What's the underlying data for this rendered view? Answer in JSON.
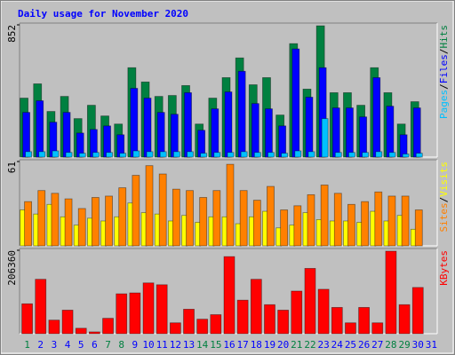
{
  "chart_data": {
    "type": "bar",
    "title": "Daily usage for November 2020",
    "categories": [
      "1",
      "2",
      "3",
      "4",
      "5",
      "6",
      "7",
      "8",
      "9",
      "10",
      "11",
      "12",
      "13",
      "14",
      "15",
      "16",
      "17",
      "18",
      "19",
      "20",
      "21",
      "22",
      "23",
      "24",
      "25",
      "26",
      "27",
      "28",
      "29",
      "30",
      "31"
    ],
    "category_colors": [
      "#008040",
      "#0000ff",
      "#0000ff",
      "#0000ff",
      "#0000ff",
      "#0000ff",
      "#008040",
      "#008040",
      "#0000ff",
      "#0000ff",
      "#0000ff",
      "#0000ff",
      "#0000ff",
      "#008040",
      "#008040",
      "#0000ff",
      "#0000ff",
      "#0000ff",
      "#0000ff",
      "#0000ff",
      "#008040",
      "#008040",
      "#0000ff",
      "#0000ff",
      "#0000ff",
      "#0000ff",
      "#0000ff",
      "#008040",
      "#008040",
      "#0000ff",
      "#0000ff"
    ],
    "legend_separator": "/",
    "panels": [
      {
        "ylim": [
          0,
          852
        ],
        "yticks": [
          852
        ],
        "series": [
          {
            "name": "Pages",
            "color": "#00c0ff",
            "values": [
              35,
              35,
              40,
              30,
              25,
              30,
              30,
              25,
              40,
              35,
              35,
              35,
              35,
              25,
              30,
              30,
              35,
              30,
              30,
              25,
              40,
              35,
              248,
              30,
              30,
              30,
              35,
              30,
              20,
              25,
              null
            ]
          },
          {
            "name": "Files",
            "color": "#0000ff",
            "values": [
              288,
              363,
              225,
              288,
              155,
              178,
              201,
              144,
              443,
              380,
              288,
              276,
              415,
              173,
              311,
              420,
              553,
              345,
              311,
              201,
              697,
              386,
              576,
              317,
              317,
              259,
              512,
              328,
              144,
              317,
              null
            ]
          },
          {
            "name": "Hits",
            "color": "#008040",
            "values": [
              380,
              472,
              294,
              391,
              248,
              334,
              265,
              213,
              576,
              484,
              391,
              397,
              461,
              213,
              380,
              512,
              639,
              466,
              512,
              271,
              731,
              438,
              846,
              415,
              415,
              334,
              576,
              415,
              213,
              357,
              null
            ]
          }
        ]
      },
      {
        "ylim": [
          0,
          61
        ],
        "yticks": [
          61
        ],
        "series": [
          {
            "name": "Sites",
            "color": "#ff8000",
            "values": [
              32,
              40,
              38,
              34,
              27,
              35,
              36,
              42,
              51,
              58,
              52,
              41,
              40,
              35,
              40,
              59,
              40,
              33,
              43,
              26,
              29,
              37,
              44,
              38,
              30,
              32,
              39,
              36,
              36,
              26,
              null
            ]
          },
          {
            "name": "Visits",
            "color": "#ffff00",
            "values": [
              26,
              23,
              30,
              21,
              15,
              20,
              18,
              21,
              31,
              24,
              23,
              18,
              22,
              17,
              21,
              21,
              16,
              21,
              25,
              13,
              15,
              24,
              19,
              18,
              18,
              17,
              25,
              18,
              22,
              12,
              null
            ]
          }
        ]
      },
      {
        "ylim": [
          0,
          206360
        ],
        "yticks": [
          206360
        ],
        "series": [
          {
            "name": "KBytes",
            "color": "#ff0000",
            "values": [
              74000,
              134600,
              33600,
              58300,
              13500,
              4500,
              38100,
              98700,
              100900,
              125600,
              121100,
              26900,
              60600,
              35900,
              47100,
              190700,
              83000,
              134600,
              71800,
              58300,
              105400,
              161500,
              109900,
              65000,
              26900,
              65000,
              26900,
              204100,
              71800,
              114400,
              null
            ]
          }
        ]
      }
    ]
  }
}
